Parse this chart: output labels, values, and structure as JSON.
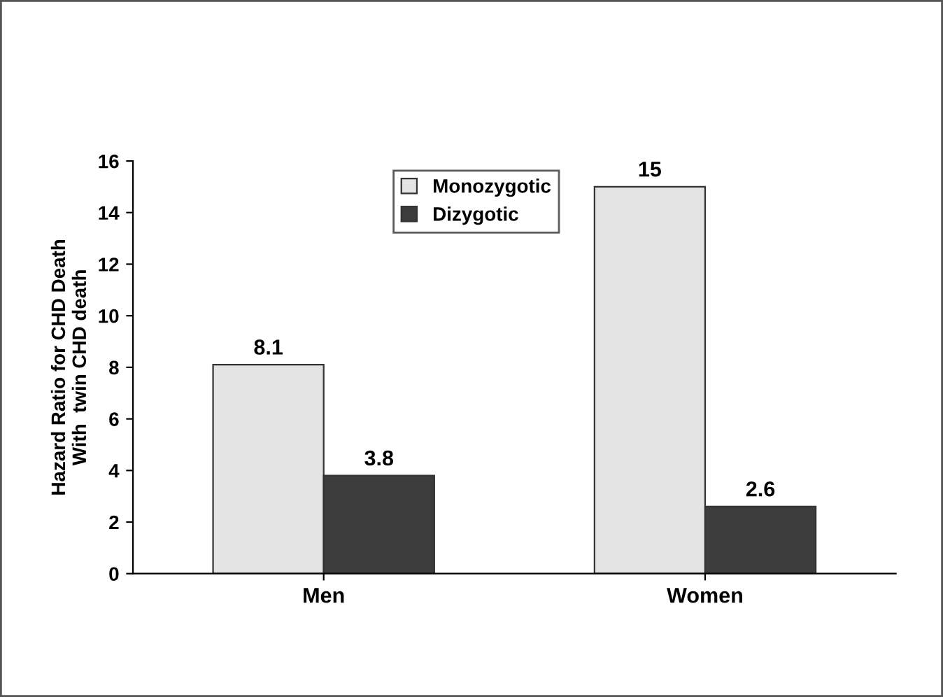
{
  "chart_data": {
    "type": "bar",
    "ylabel": "Hazard Ratio for CHD Death\nWith  twin CHD death",
    "categories": [
      "Men",
      "Women"
    ],
    "series": [
      {
        "name": "Monozygotic",
        "color": "#e4e4e4",
        "values": [
          8.1,
          15
        ]
      },
      {
        "name": "Dizygotic",
        "color": "#3c3c3c",
        "values": [
          3.8,
          2.6
        ]
      }
    ],
    "ylim": [
      0,
      16
    ],
    "yticks": [
      0,
      2,
      4,
      6,
      8,
      10,
      12,
      14,
      16
    ],
    "data_labels": true,
    "grid": false,
    "legend": "top"
  }
}
